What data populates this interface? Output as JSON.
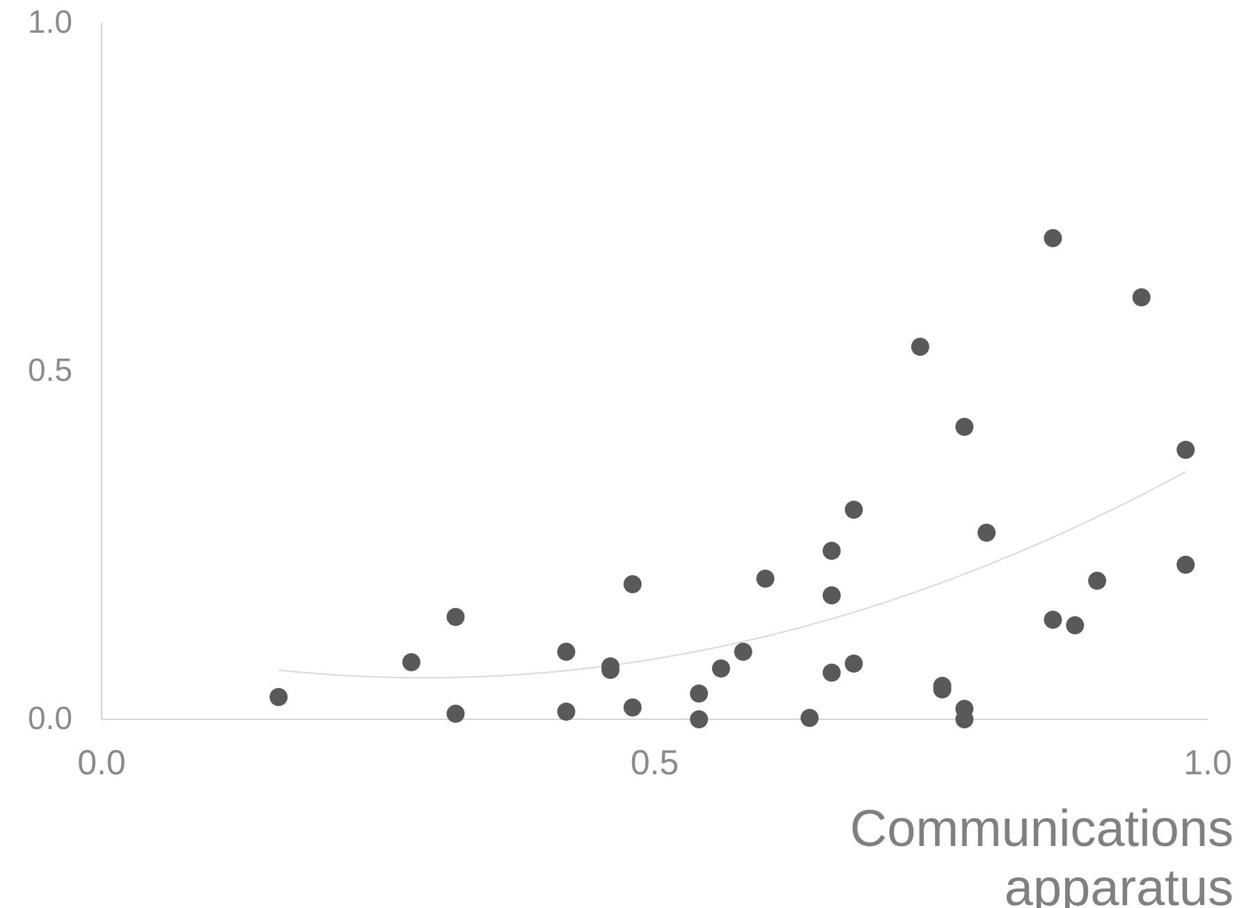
{
  "chart_data": {
    "type": "scatter",
    "title": "",
    "xlabel": [
      "Communications",
      "apparatus"
    ],
    "ylabel": "",
    "xlim": [
      0.0,
      1.0
    ],
    "ylim": [
      0.0,
      1.0
    ],
    "x_ticks": [
      "0.0",
      "0.5",
      "1.0"
    ],
    "y_ticks": [
      "0.0",
      "0.5",
      "1.0"
    ],
    "grid": false,
    "legend": "none",
    "colors": {
      "points": "#595959",
      "trendline": "#d9d9d9",
      "axis": "#c8c8c8",
      "text": "#8a8a8a"
    },
    "trendline": {
      "type": "polynomial",
      "coefficients": [
        0.113,
        -0.365,
        0.625
      ],
      "x_range": [
        0.16,
        0.98
      ]
    },
    "points": [
      {
        "x": 0.16,
        "y": 0.032
      },
      {
        "x": 0.28,
        "y": 0.082
      },
      {
        "x": 0.32,
        "y": 0.147
      },
      {
        "x": 0.32,
        "y": 0.008
      },
      {
        "x": 0.42,
        "y": 0.097
      },
      {
        "x": 0.42,
        "y": 0.011
      },
      {
        "x": 0.46,
        "y": 0.076
      },
      {
        "x": 0.46,
        "y": 0.071
      },
      {
        "x": 0.48,
        "y": 0.194
      },
      {
        "x": 0.48,
        "y": 0.017
      },
      {
        "x": 0.54,
        "y": 0.037
      },
      {
        "x": 0.54,
        "y": 0.0
      },
      {
        "x": 0.56,
        "y": 0.073
      },
      {
        "x": 0.58,
        "y": 0.097
      },
      {
        "x": 0.6,
        "y": 0.202
      },
      {
        "x": 0.64,
        "y": 0.002
      },
      {
        "x": 0.66,
        "y": 0.242
      },
      {
        "x": 0.66,
        "y": 0.178
      },
      {
        "x": 0.66,
        "y": 0.067
      },
      {
        "x": 0.68,
        "y": 0.301
      },
      {
        "x": 0.68,
        "y": 0.08
      },
      {
        "x": 0.74,
        "y": 0.535
      },
      {
        "x": 0.76,
        "y": 0.048
      },
      {
        "x": 0.76,
        "y": 0.043
      },
      {
        "x": 0.78,
        "y": 0.42
      },
      {
        "x": 0.78,
        "y": 0.015
      },
      {
        "x": 0.78,
        "y": 0.0
      },
      {
        "x": 0.8,
        "y": 0.268
      },
      {
        "x": 0.86,
        "y": 0.691
      },
      {
        "x": 0.86,
        "y": 0.143
      },
      {
        "x": 0.88,
        "y": 0.135
      },
      {
        "x": 0.9,
        "y": 0.199
      },
      {
        "x": 0.94,
        "y": 0.606
      },
      {
        "x": 0.98,
        "y": 0.387
      },
      {
        "x": 0.98,
        "y": 0.222
      }
    ]
  }
}
